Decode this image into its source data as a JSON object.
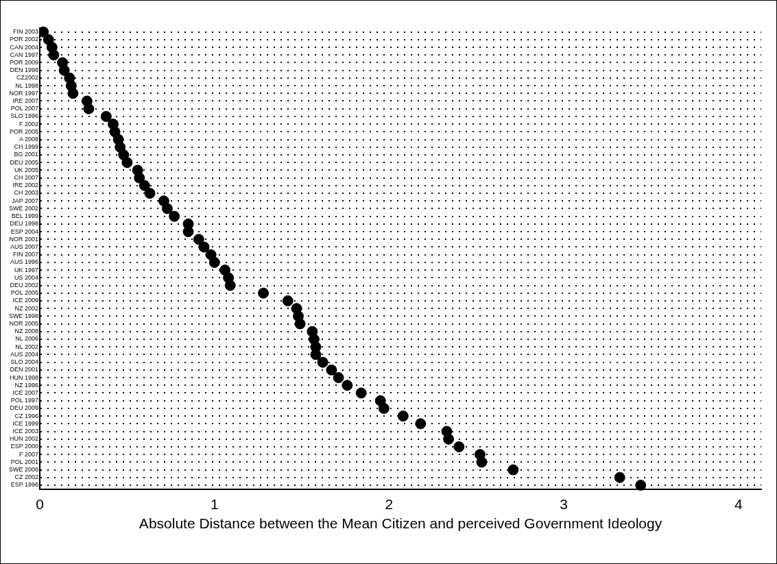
{
  "chart_data": {
    "type": "scatter",
    "orientation": "horizontal",
    "xlabel": "Absolute Distance between the Mean Citizen and perceived Government Ideology",
    "categories": [
      "FIN 2003",
      "POR 2002",
      "CAN 2004",
      "CAN 1997",
      "POR 2009",
      "DEN 1998",
      "CZ2002",
      "NL 1998",
      "NOR 1997",
      "IRE 2007",
      "POL 2007",
      "SLO 1996",
      "F 2002",
      "POR 2005",
      "A 2008",
      "CH 1999",
      "BG 2001",
      "DEU 2005",
      "UK 2005",
      "CH 2007",
      "IRE 2002",
      "CH 2003",
      "JAP 2007",
      "SWE 2002",
      "BEL 1999",
      "DEU 1998",
      "ESP 2004",
      "NOR 2001",
      "AUS 2007",
      "FIN 2007",
      "AUS 1996",
      "UK 1997",
      "US 2004",
      "DEU 2002",
      "POL 2005",
      "ICE 2009",
      "NZ 2002",
      "SWE 1998",
      "NOR 2005",
      "NZ 2008",
      "NL 2006",
      "NL 2002",
      "AUS 2004",
      "SLO 2004",
      "DEN 2001",
      "HUN 1998",
      "NZ 1996",
      "ICE 2007",
      "POL 1997",
      "DEU 2009",
      "CZ 1996",
      "ICE 1999",
      "ICE 2003",
      "HUN 2002",
      "ESP 2000",
      "F 2007",
      "POL 2001",
      "SWE 2006",
      "CZ 2002",
      "ESP 1996"
    ],
    "values": [
      0.02,
      0.05,
      0.07,
      0.08,
      0.13,
      0.14,
      0.17,
      0.18,
      0.19,
      0.27,
      0.28,
      0.38,
      0.42,
      0.43,
      0.45,
      0.46,
      0.48,
      0.5,
      0.56,
      0.57,
      0.6,
      0.63,
      0.71,
      0.73,
      0.77,
      0.85,
      0.85,
      0.91,
      0.94,
      0.98,
      1.0,
      1.06,
      1.08,
      1.09,
      1.28,
      1.42,
      1.47,
      1.48,
      1.49,
      1.56,
      1.57,
      1.58,
      1.58,
      1.62,
      1.67,
      1.71,
      1.76,
      1.84,
      1.95,
      1.97,
      2.08,
      2.18,
      2.33,
      2.34,
      2.4,
      2.52,
      2.53,
      2.71,
      3.32,
      3.44
    ],
    "color": "#000000",
    "marker": "circle",
    "xlim": [
      0,
      4.13
    ],
    "xticks": [
      0,
      1,
      2,
      3,
      4
    ],
    "grid": "y"
  }
}
